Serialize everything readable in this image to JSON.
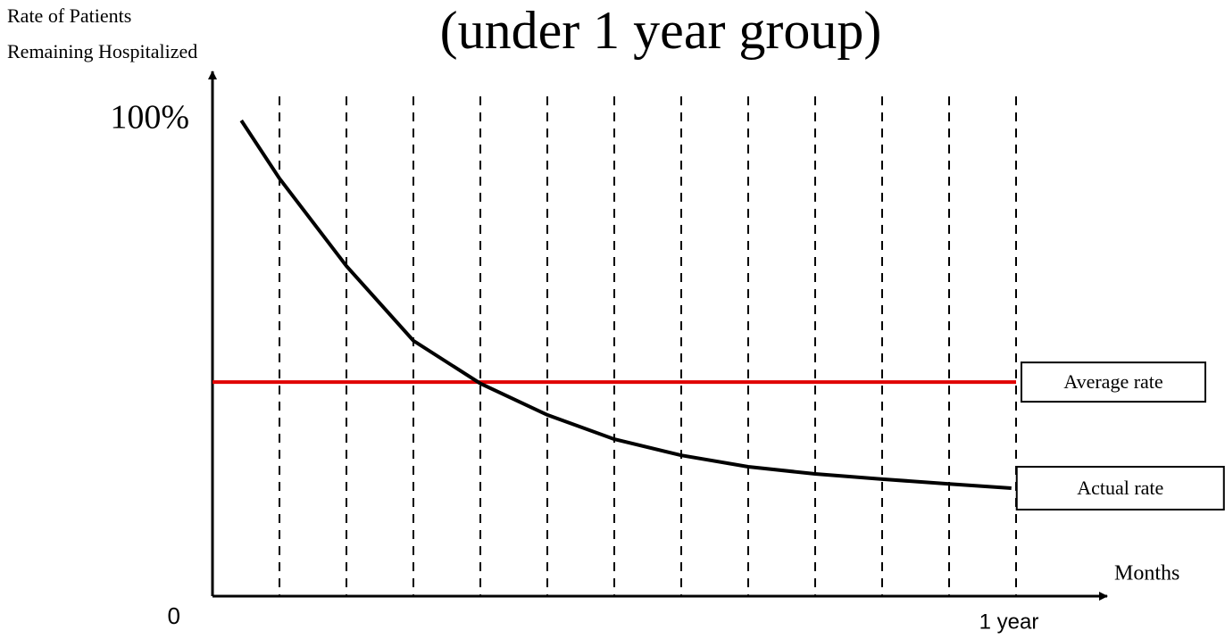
{
  "chart_data": {
    "type": "line",
    "title": "(under 1 year group)",
    "y_label": "Rate of Patients Remaining Hospitalized",
    "x_label": "Months",
    "xlim": [
      0,
      13.36
    ],
    "ylim": [
      0,
      109
    ],
    "xticks": [
      {
        "value": 12,
        "label": "1 year"
      }
    ],
    "yticks": [
      0,
      {
        "value": 100,
        "label": "100%"
      }
    ],
    "x_gridlines": [
      1,
      2,
      3,
      4,
      5,
      6,
      7,
      8,
      9,
      10,
      11,
      12
    ],
    "series": [
      {
        "name": "Average rate",
        "color": "#e00000",
        "x": [
          0,
          12
        ],
        "values": [
          45,
          45
        ]
      },
      {
        "name": "Actual rate",
        "color": "#000000",
        "x": [
          0.43,
          1,
          2,
          3,
          4,
          5,
          6,
          7,
          8,
          9,
          10,
          11,
          11.93
        ],
        "values": [
          100,
          87.8,
          69.4,
          53.7,
          44.7,
          38.1,
          33,
          29.6,
          27.2,
          25.7,
          24.6,
          23.6,
          22.7
        ]
      }
    ]
  }
}
